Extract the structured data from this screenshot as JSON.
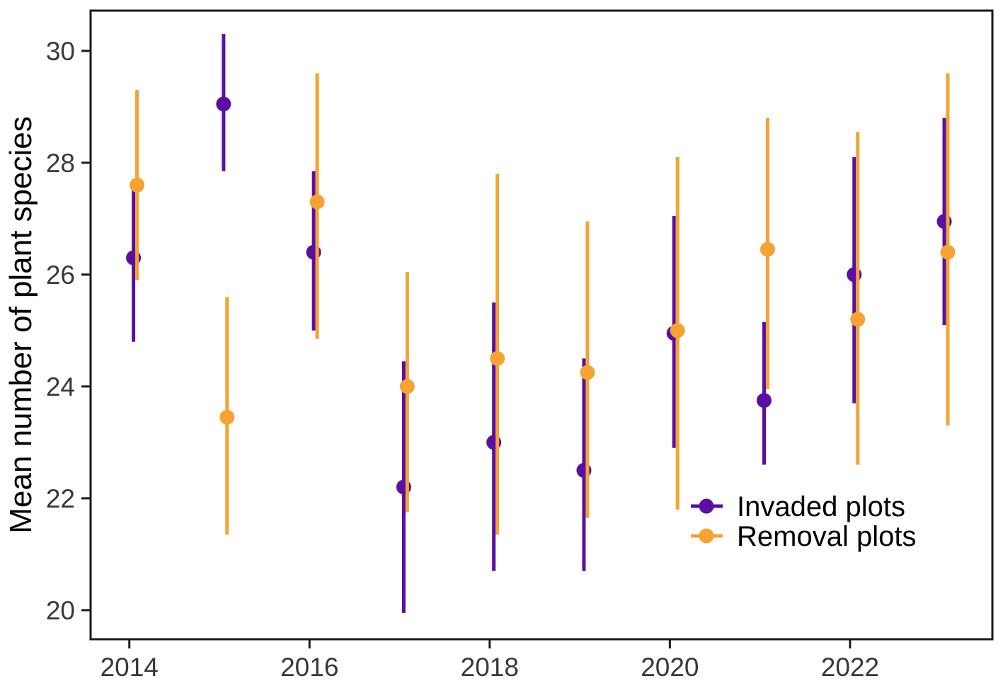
{
  "figure": {
    "ylabel": "Mean number of plant species",
    "legend": [
      {
        "label": "Invaded plots",
        "color": "#5B0EA3"
      },
      {
        "label": "Removal plots",
        "color": "#F5A333"
      }
    ]
  },
  "chart_data": {
    "type": "scatter",
    "subtype": "pointrange-with-error-bars",
    "title": "",
    "xlabel": "",
    "ylabel": "Mean number of plant species",
    "grid": false,
    "legend_position": "inside-bottom-right",
    "x_ticks": [
      2014,
      2016,
      2018,
      2020,
      2022
    ],
    "y_ticks": [
      20,
      22,
      24,
      26,
      28,
      30
    ],
    "x_range": [
      2013.57,
      2023.58
    ],
    "y_range": [
      19.48,
      30.72
    ],
    "categories": [
      2014,
      2015,
      2016,
      2017,
      2018,
      2019,
      2020,
      2021,
      2022,
      2023
    ],
    "series": [
      {
        "name": "Invaded plots",
        "color": "#5B0EA3",
        "points": [
          {
            "year": 2014,
            "mean": 26.3,
            "lo": 24.8,
            "hi": 27.65
          },
          {
            "year": 2015,
            "mean": 29.05,
            "lo": 27.85,
            "hi": 30.3
          },
          {
            "year": 2016,
            "mean": 26.4,
            "lo": 25.0,
            "hi": 27.85
          },
          {
            "year": 2017,
            "mean": 22.2,
            "lo": 19.95,
            "hi": 24.45
          },
          {
            "year": 2018,
            "mean": 23.0,
            "lo": 20.7,
            "hi": 25.5
          },
          {
            "year": 2019,
            "mean": 22.5,
            "lo": 20.7,
            "hi": 24.5
          },
          {
            "year": 2020,
            "mean": 24.95,
            "lo": 22.9,
            "hi": 27.05
          },
          {
            "year": 2021,
            "mean": 23.75,
            "lo": 22.6,
            "hi": 25.15
          },
          {
            "year": 2022,
            "mean": 26.0,
            "lo": 23.7,
            "hi": 28.1
          },
          {
            "year": 2023,
            "mean": 26.95,
            "lo": 25.1,
            "hi": 28.8
          }
        ]
      },
      {
        "name": "Removal plots",
        "color": "#F5A333",
        "points": [
          {
            "year": 2014,
            "mean": 27.6,
            "lo": 25.9,
            "hi": 29.3
          },
          {
            "year": 2015,
            "mean": 23.45,
            "lo": 21.35,
            "hi": 25.6
          },
          {
            "year": 2016,
            "mean": 27.3,
            "lo": 24.85,
            "hi": 29.6
          },
          {
            "year": 2017,
            "mean": 24.0,
            "lo": 21.75,
            "hi": 26.05
          },
          {
            "year": 2018,
            "mean": 24.5,
            "lo": 21.35,
            "hi": 27.8
          },
          {
            "year": 2019,
            "mean": 24.25,
            "lo": 21.65,
            "hi": 26.95
          },
          {
            "year": 2020,
            "mean": 25.0,
            "lo": 21.8,
            "hi": 28.1
          },
          {
            "year": 2021,
            "mean": 26.45,
            "lo": 23.95,
            "hi": 28.8
          },
          {
            "year": 2022,
            "mean": 25.2,
            "lo": 22.6,
            "hi": 28.55
          },
          {
            "year": 2023,
            "mean": 26.4,
            "lo": 23.3,
            "hi": 29.6
          }
        ]
      }
    ]
  }
}
